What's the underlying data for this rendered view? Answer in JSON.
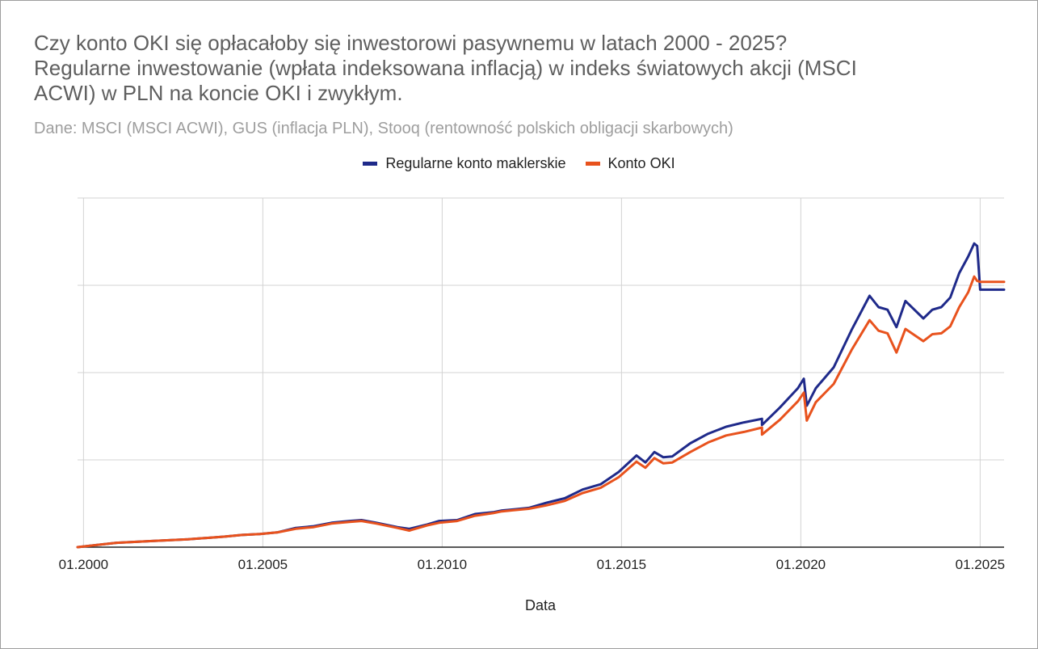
{
  "title_lines": [
    "Czy konto OKI się opłacałoby się inwestorowi pasywnemu w latach 2000 - 2025?",
    "Regularne inwestowanie (wpłata indeksowana inflacją) w indeks światowych akcji (MSCI",
    "ACWI) w PLN na koncie OKI i zwykłym."
  ],
  "subtitle": "Dane: MSCI (MSCI ACWI), GUS (inflacja PLN), Stooq (rentowność polskich obligacji skarbowych)",
  "colors": {
    "series_regular": "#1f2a8a",
    "series_oki": "#e8521d",
    "grid": "#d3d3d3",
    "axis": "#222222"
  },
  "chart_data": {
    "type": "line",
    "xlabel": "Data",
    "ylabel": "",
    "x_ticks": [
      "01.2000",
      "01.2005",
      "01.2010",
      "01.2015",
      "01.2020",
      "01.2025"
    ],
    "xlim": [
      "1999-11",
      "2025-09"
    ],
    "ylim": [
      0,
      4
    ],
    "y_gridlines": [
      1,
      2,
      3,
      4
    ],
    "y_tick_labels_shown": false,
    "grid": true,
    "legend": "top-center",
    "series": [
      {
        "name": "Regularne konto maklerskie",
        "points": [
          [
            "1999-11",
            0.0
          ],
          [
            "2000-12",
            0.05
          ],
          [
            "2001-12",
            0.07
          ],
          [
            "2002-12",
            0.09
          ],
          [
            "2003-12",
            0.12
          ],
          [
            "2004-06",
            0.14
          ],
          [
            "2004-12",
            0.15
          ],
          [
            "2005-06",
            0.17
          ],
          [
            "2005-12",
            0.22
          ],
          [
            "2006-06",
            0.24
          ],
          [
            "2006-12",
            0.28
          ],
          [
            "2007-06",
            0.3
          ],
          [
            "2007-10",
            0.31
          ],
          [
            "2008-03",
            0.28
          ],
          [
            "2008-10",
            0.23
          ],
          [
            "2009-02",
            0.21
          ],
          [
            "2009-08",
            0.26
          ],
          [
            "2009-12",
            0.3
          ],
          [
            "2010-06",
            0.31
          ],
          [
            "2010-12",
            0.38
          ],
          [
            "2011-06",
            0.4
          ],
          [
            "2011-09",
            0.42
          ],
          [
            "2011-12",
            0.43
          ],
          [
            "2012-06",
            0.45
          ],
          [
            "2012-12",
            0.51
          ],
          [
            "2013-06",
            0.56
          ],
          [
            "2013-12",
            0.66
          ],
          [
            "2014-06",
            0.72
          ],
          [
            "2014-12",
            0.86
          ],
          [
            "2015-06",
            1.05
          ],
          [
            "2015-09",
            0.97
          ],
          [
            "2015-12",
            1.09
          ],
          [
            "2016-03",
            1.03
          ],
          [
            "2016-06",
            1.04
          ],
          [
            "2016-12",
            1.19
          ],
          [
            "2017-06",
            1.3
          ],
          [
            "2017-12",
            1.38
          ],
          [
            "2018-06",
            1.43
          ],
          [
            "2018-12",
            1.47
          ],
          [
            "2018-12",
            1.4
          ],
          [
            "2019-06",
            1.6
          ],
          [
            "2019-12",
            1.82
          ],
          [
            "2020-02",
            1.93
          ],
          [
            "2020-03",
            1.62
          ],
          [
            "2020-06",
            1.82
          ],
          [
            "2020-12",
            2.06
          ],
          [
            "2021-06",
            2.49
          ],
          [
            "2021-12",
            2.88
          ],
          [
            "2022-03",
            2.75
          ],
          [
            "2022-06",
            2.72
          ],
          [
            "2022-09",
            2.52
          ],
          [
            "2022-12",
            2.82
          ],
          [
            "2023-06",
            2.62
          ],
          [
            "2023-09",
            2.72
          ],
          [
            "2023-12",
            2.75
          ],
          [
            "2024-03",
            2.86
          ],
          [
            "2024-06",
            3.14
          ],
          [
            "2024-09",
            3.33
          ],
          [
            "2024-11",
            3.48
          ],
          [
            "2024-12",
            3.45
          ],
          [
            "2025-01",
            2.95
          ],
          [
            "2025-09",
            2.95
          ]
        ]
      },
      {
        "name": "Konto OKI",
        "points": [
          [
            "1999-11",
            0.0
          ],
          [
            "2000-12",
            0.05
          ],
          [
            "2001-12",
            0.07
          ],
          [
            "2002-12",
            0.09
          ],
          [
            "2003-12",
            0.12
          ],
          [
            "2004-06",
            0.14
          ],
          [
            "2004-12",
            0.15
          ],
          [
            "2005-06",
            0.17
          ],
          [
            "2005-12",
            0.21
          ],
          [
            "2006-06",
            0.23
          ],
          [
            "2006-12",
            0.27
          ],
          [
            "2007-06",
            0.29
          ],
          [
            "2007-10",
            0.3
          ],
          [
            "2008-03",
            0.27
          ],
          [
            "2008-10",
            0.22
          ],
          [
            "2009-02",
            0.19
          ],
          [
            "2009-08",
            0.25
          ],
          [
            "2009-12",
            0.28
          ],
          [
            "2010-06",
            0.3
          ],
          [
            "2010-12",
            0.36
          ],
          [
            "2011-06",
            0.39
          ],
          [
            "2011-09",
            0.41
          ],
          [
            "2011-12",
            0.42
          ],
          [
            "2012-06",
            0.44
          ],
          [
            "2012-12",
            0.48
          ],
          [
            "2013-06",
            0.53
          ],
          [
            "2013-12",
            0.62
          ],
          [
            "2014-06",
            0.68
          ],
          [
            "2014-12",
            0.8
          ],
          [
            "2015-06",
            0.98
          ],
          [
            "2015-09",
            0.91
          ],
          [
            "2015-12",
            1.02
          ],
          [
            "2016-03",
            0.96
          ],
          [
            "2016-06",
            0.97
          ],
          [
            "2016-12",
            1.09
          ],
          [
            "2017-06",
            1.2
          ],
          [
            "2017-12",
            1.28
          ],
          [
            "2018-06",
            1.32
          ],
          [
            "2018-12",
            1.37
          ],
          [
            "2018-12",
            1.29
          ],
          [
            "2019-06",
            1.46
          ],
          [
            "2019-12",
            1.67
          ],
          [
            "2020-02",
            1.77
          ],
          [
            "2020-03",
            1.45
          ],
          [
            "2020-06",
            1.66
          ],
          [
            "2020-12",
            1.87
          ],
          [
            "2021-06",
            2.26
          ],
          [
            "2021-12",
            2.6
          ],
          [
            "2022-03",
            2.48
          ],
          [
            "2022-06",
            2.45
          ],
          [
            "2022-09",
            2.23
          ],
          [
            "2022-12",
            2.5
          ],
          [
            "2023-06",
            2.36
          ],
          [
            "2023-09",
            2.44
          ],
          [
            "2023-12",
            2.45
          ],
          [
            "2024-03",
            2.53
          ],
          [
            "2024-06",
            2.75
          ],
          [
            "2024-09",
            2.92
          ],
          [
            "2024-11",
            3.1
          ],
          [
            "2024-12",
            3.05
          ],
          [
            "2025-01",
            3.04
          ],
          [
            "2025-09",
            3.04
          ]
        ]
      }
    ]
  }
}
